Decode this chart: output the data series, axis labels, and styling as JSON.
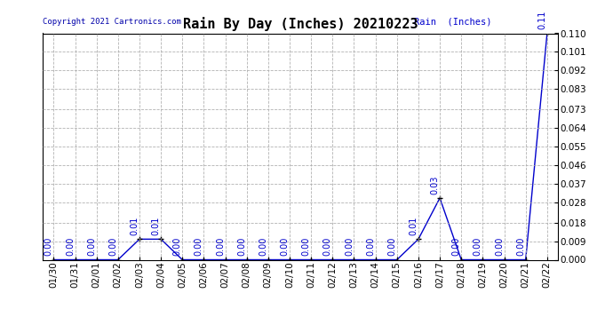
{
  "title": "Rain By Day (Inches) 20210223",
  "copyright_text": "Copyright 2021 Cartronics.com",
  "legend_label": "Rain  (Inches)",
  "dates": [
    "01/30",
    "01/31",
    "02/01",
    "02/02",
    "02/03",
    "02/04",
    "02/05",
    "02/06",
    "02/07",
    "02/08",
    "02/09",
    "02/10",
    "02/11",
    "02/12",
    "02/13",
    "02/14",
    "02/15",
    "02/16",
    "02/17",
    "02/18",
    "02/19",
    "02/20",
    "02/21",
    "02/22"
  ],
  "values": [
    0.0,
    0.0,
    0.0,
    0.0,
    0.01,
    0.01,
    0.0,
    0.0,
    0.0,
    0.0,
    0.0,
    0.0,
    0.0,
    0.0,
    0.0,
    0.0,
    0.0,
    0.01,
    0.03,
    0.0,
    0.0,
    0.0,
    0.0,
    0.11
  ],
  "ylim": [
    0.0,
    0.11
  ],
  "yticks": [
    0.0,
    0.009,
    0.018,
    0.028,
    0.037,
    0.046,
    0.055,
    0.064,
    0.073,
    0.083,
    0.092,
    0.101,
    0.11
  ],
  "line_color": "#0000cc",
  "marker_color": "#000000",
  "label_color": "#0000cc",
  "title_color": "#000000",
  "copyright_color": "#0000aa",
  "legend_color": "#0000cc",
  "background_color": "#ffffff",
  "grid_color": "#aaaaaa",
  "title_fontsize": 11,
  "tick_fontsize": 7.5,
  "label_fontsize": 7,
  "copyright_fontsize": 6.5,
  "legend_fontsize": 7.5
}
